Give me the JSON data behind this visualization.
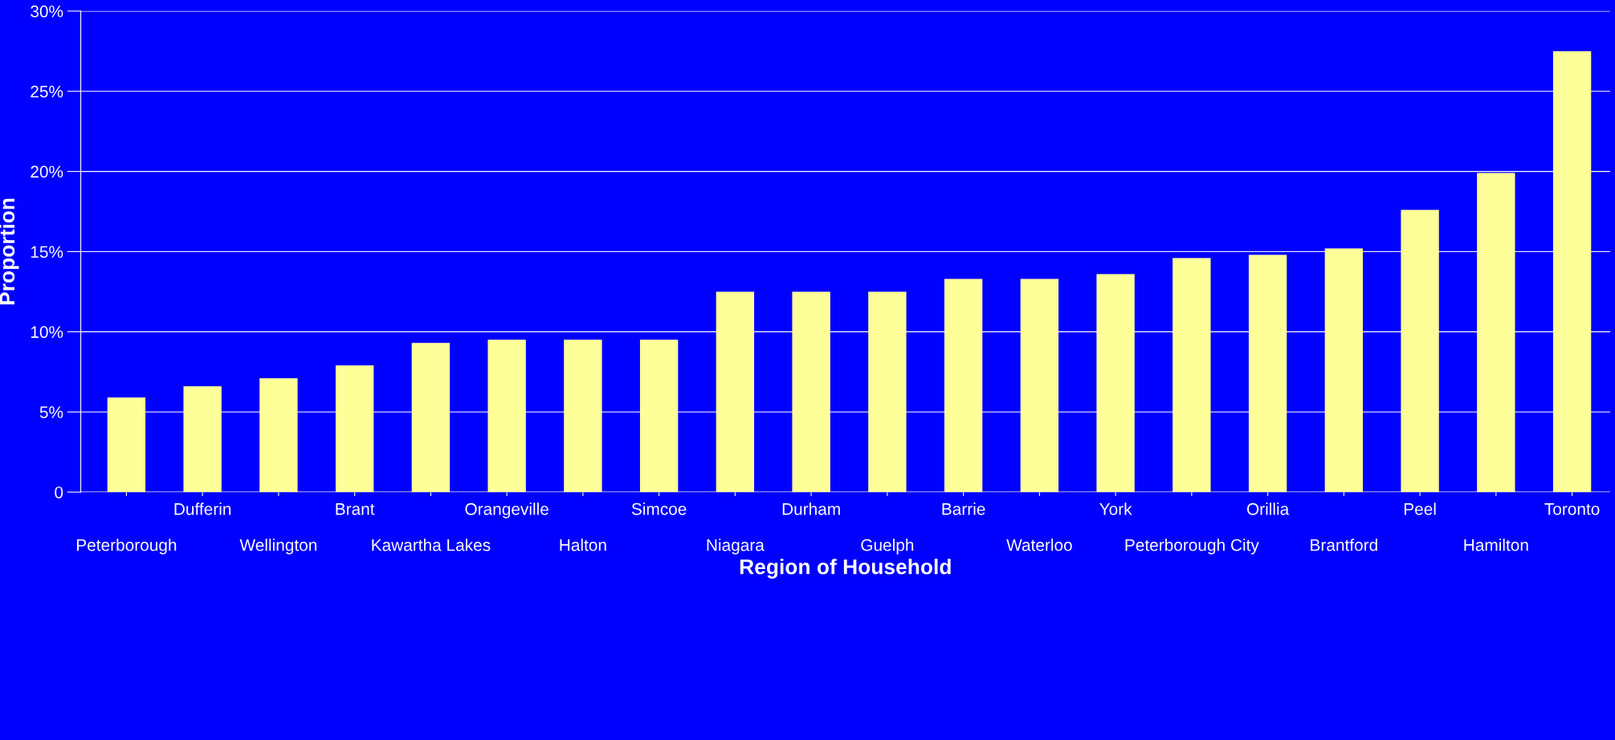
{
  "chart_data": {
    "type": "bar",
    "xlabel": "Region of Household",
    "ylabel": "Proportion",
    "categories": [
      "Peterborough",
      "Dufferin",
      "Wellington",
      "Brant",
      "Kawartha Lakes",
      "Orangeville",
      "Halton",
      "Simcoe",
      "Niagara",
      "Durham",
      "Guelph",
      "Barrie",
      "Waterloo",
      "York",
      "Peterborough City",
      "Orillia",
      "Brantford",
      "Peel",
      "Hamilton",
      "Toronto"
    ],
    "values": [
      5.9,
      6.6,
      7.1,
      7.9,
      9.3,
      9.5,
      9.5,
      9.5,
      12.5,
      12.5,
      12.5,
      13.3,
      13.3,
      13.6,
      14.6,
      14.8,
      15.2,
      17.6,
      19.9,
      27.5
    ],
    "color": "#ffff99",
    "ylim": [
      0,
      30
    ],
    "yticks": [
      {
        "value": 0,
        "label": "0"
      },
      {
        "value": 5,
        "label": "5%"
      },
      {
        "value": 10,
        "label": "10%"
      },
      {
        "value": 15,
        "label": "15%"
      },
      {
        "value": 20,
        "label": "20%"
      },
      {
        "value": 25,
        "label": "25%"
      },
      {
        "value": 30,
        "label": "30%"
      }
    ],
    "grid": "y",
    "legend": false
  }
}
